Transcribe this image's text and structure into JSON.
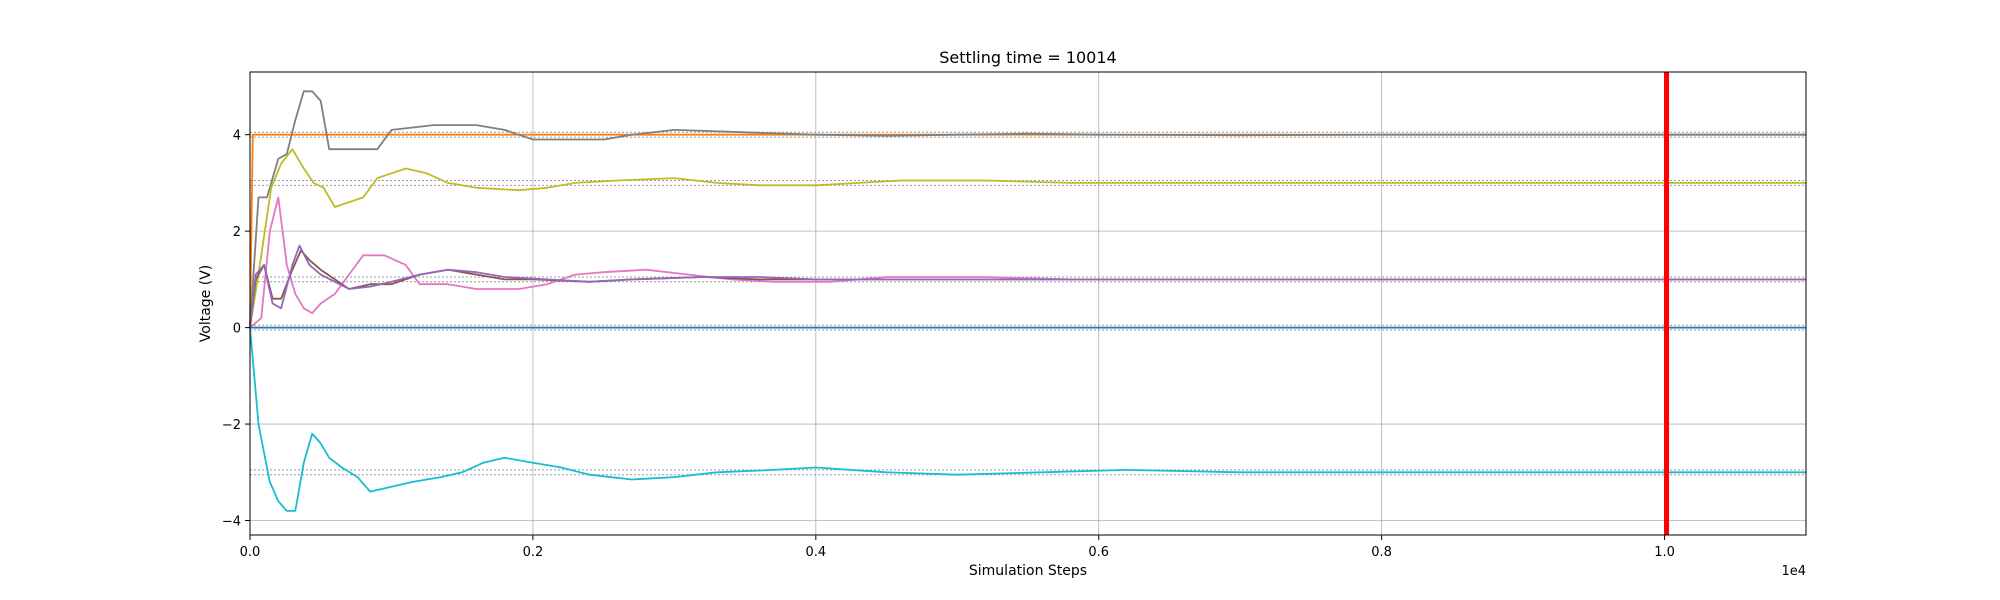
{
  "chart_data": {
    "type": "line",
    "title": "Settling time = 10014",
    "xlabel": "Simulation Steps",
    "ylabel": "Voltage (V)",
    "x_offset_label": "1e4",
    "xlim": [
      0,
      11000
    ],
    "ylim": [
      -4.3,
      5.3
    ],
    "x_ticks": [
      0,
      2000,
      4000,
      6000,
      8000,
      10000
    ],
    "x_tick_labels": [
      "0.0",
      "0.2",
      "0.4",
      "0.6",
      "0.8",
      "1.0"
    ],
    "y_ticks": [
      -4,
      -2,
      0,
      2,
      4
    ],
    "y_tick_labels": [
      "−4",
      "−2",
      "0",
      "2",
      "4"
    ],
    "grid": true,
    "settling_marker": {
      "x": 10014,
      "color": "#ff0000"
    },
    "tolerance_band": {
      "half_width": 0.05,
      "color": "#999999"
    },
    "series": [
      {
        "color": "#ff7f0e",
        "target": 4,
        "points": [
          [
            0,
            0
          ],
          [
            20,
            4
          ],
          [
            11000,
            4
          ]
        ]
      },
      {
        "color": "#7f7f7f",
        "target": 4,
        "points": [
          [
            0,
            0
          ],
          [
            60,
            2.7
          ],
          [
            120,
            2.7
          ],
          [
            200,
            3.5
          ],
          [
            260,
            3.6
          ],
          [
            320,
            4.3
          ],
          [
            380,
            4.9
          ],
          [
            440,
            4.9
          ],
          [
            500,
            4.7
          ],
          [
            560,
            3.7
          ],
          [
            900,
            3.7
          ],
          [
            1000,
            4.1
          ],
          [
            1300,
            4.2
          ],
          [
            1600,
            4.2
          ],
          [
            1800,
            4.1
          ],
          [
            1900,
            4.0
          ],
          [
            2000,
            3.9
          ],
          [
            2500,
            3.9
          ],
          [
            2700,
            4.0
          ],
          [
            3000,
            4.1
          ],
          [
            3500,
            4.05
          ],
          [
            4000,
            4.0
          ],
          [
            4500,
            3.98
          ],
          [
            5000,
            4.0
          ],
          [
            5500,
            4.02
          ],
          [
            6000,
            4.0
          ],
          [
            7000,
            3.99
          ],
          [
            8000,
            4.0
          ],
          [
            9000,
            4.0
          ],
          [
            11000,
            4.0
          ]
        ]
      },
      {
        "color": "#bcbd22",
        "target": 3,
        "points": [
          [
            0,
            0
          ],
          [
            80,
            1.5
          ],
          [
            150,
            2.9
          ],
          [
            220,
            3.4
          ],
          [
            300,
            3.7
          ],
          [
            380,
            3.3
          ],
          [
            450,
            3.0
          ],
          [
            520,
            2.9
          ],
          [
            600,
            2.5
          ],
          [
            700,
            2.6
          ],
          [
            800,
            2.7
          ],
          [
            900,
            3.1
          ],
          [
            1000,
            3.2
          ],
          [
            1100,
            3.3
          ],
          [
            1250,
            3.2
          ],
          [
            1400,
            3.0
          ],
          [
            1600,
            2.9
          ],
          [
            1900,
            2.85
          ],
          [
            2100,
            2.9
          ],
          [
            2300,
            3.0
          ],
          [
            2600,
            3.05
          ],
          [
            3000,
            3.1
          ],
          [
            3300,
            3.0
          ],
          [
            3600,
            2.95
          ],
          [
            4000,
            2.95
          ],
          [
            4600,
            3.05
          ],
          [
            5200,
            3.05
          ],
          [
            5800,
            3.0
          ],
          [
            6500,
            3.0
          ],
          [
            7500,
            3.0
          ],
          [
            11000,
            3.0
          ]
        ]
      },
      {
        "color": "#e377c2",
        "target": 1,
        "points": [
          [
            0,
            0
          ],
          [
            80,
            0.2
          ],
          [
            140,
            2.0
          ],
          [
            200,
            2.7
          ],
          [
            260,
            1.3
          ],
          [
            320,
            0.7
          ],
          [
            380,
            0.4
          ],
          [
            440,
            0.3
          ],
          [
            500,
            0.5
          ],
          [
            600,
            0.7
          ],
          [
            700,
            1.1
          ],
          [
            800,
            1.5
          ],
          [
            950,
            1.5
          ],
          [
            1100,
            1.3
          ],
          [
            1200,
            0.9
          ],
          [
            1400,
            0.9
          ],
          [
            1600,
            0.8
          ],
          [
            1900,
            0.8
          ],
          [
            2100,
            0.9
          ],
          [
            2300,
            1.1
          ],
          [
            2500,
            1.15
          ],
          [
            2800,
            1.2
          ],
          [
            3100,
            1.1
          ],
          [
            3400,
            1.0
          ],
          [
            3700,
            0.95
          ],
          [
            4100,
            0.95
          ],
          [
            4500,
            1.05
          ],
          [
            5200,
            1.05
          ],
          [
            5800,
            1.0
          ],
          [
            7000,
            1.0
          ],
          [
            11000,
            1.0
          ]
        ]
      },
      {
        "color": "#8c564b",
        "target": 1,
        "points": [
          [
            0,
            0
          ],
          [
            40,
            1.0
          ],
          [
            100,
            1.3
          ],
          [
            160,
            0.6
          ],
          [
            220,
            0.6
          ],
          [
            300,
            1.2
          ],
          [
            360,
            1.6
          ],
          [
            420,
            1.4
          ],
          [
            500,
            1.2
          ],
          [
            600,
            1.0
          ],
          [
            700,
            0.8
          ],
          [
            850,
            0.9
          ],
          [
            1000,
            0.9
          ],
          [
            1200,
            1.1
          ],
          [
            1400,
            1.2
          ],
          [
            1600,
            1.1
          ],
          [
            1800,
            1.0
          ],
          [
            2000,
            1.0
          ],
          [
            2400,
            0.95
          ],
          [
            2700,
            1.0
          ],
          [
            3200,
            1.05
          ],
          [
            3600,
            1.0
          ],
          [
            4000,
            1.0
          ],
          [
            4700,
            1.0
          ],
          [
            5500,
            1.0
          ],
          [
            11000,
            1.0
          ]
        ]
      },
      {
        "color": "#9467bd",
        "target": 1,
        "points": [
          [
            0,
            0
          ],
          [
            40,
            1.1
          ],
          [
            100,
            1.3
          ],
          [
            160,
            0.5
          ],
          [
            220,
            0.4
          ],
          [
            300,
            1.3
          ],
          [
            350,
            1.7
          ],
          [
            420,
            1.3
          ],
          [
            500,
            1.1
          ],
          [
            600,
            0.95
          ],
          [
            700,
            0.8
          ],
          [
            850,
            0.85
          ],
          [
            1000,
            0.95
          ],
          [
            1200,
            1.1
          ],
          [
            1400,
            1.2
          ],
          [
            1600,
            1.15
          ],
          [
            1800,
            1.05
          ],
          [
            2100,
            1.0
          ],
          [
            2400,
            0.95
          ],
          [
            2700,
            1.0
          ],
          [
            3200,
            1.05
          ],
          [
            3600,
            1.05
          ],
          [
            4000,
            1.0
          ],
          [
            4700,
            1.0
          ],
          [
            5500,
            1.0
          ],
          [
            11000,
            1.0
          ]
        ]
      },
      {
        "color": "#1f77b4",
        "target": 0,
        "points": [
          [
            0,
            0
          ],
          [
            11000,
            0
          ]
        ]
      },
      {
        "color": "#17becf",
        "target": -3,
        "points": [
          [
            0,
            0
          ],
          [
            60,
            -2.0
          ],
          [
            100,
            -2.6
          ],
          [
            140,
            -3.2
          ],
          [
            200,
            -3.6
          ],
          [
            260,
            -3.8
          ],
          [
            320,
            -3.8
          ],
          [
            380,
            -2.8
          ],
          [
            440,
            -2.2
          ],
          [
            500,
            -2.4
          ],
          [
            560,
            -2.7
          ],
          [
            650,
            -2.9
          ],
          [
            760,
            -3.1
          ],
          [
            850,
            -3.4
          ],
          [
            1000,
            -3.3
          ],
          [
            1150,
            -3.2
          ],
          [
            1350,
            -3.1
          ],
          [
            1500,
            -3.0
          ],
          [
            1650,
            -2.8
          ],
          [
            1800,
            -2.7
          ],
          [
            2000,
            -2.8
          ],
          [
            2200,
            -2.9
          ],
          [
            2400,
            -3.05
          ],
          [
            2700,
            -3.15
          ],
          [
            3000,
            -3.1
          ],
          [
            3300,
            -3.0
          ],
          [
            3700,
            -2.95
          ],
          [
            4000,
            -2.9
          ],
          [
            4500,
            -3.0
          ],
          [
            5000,
            -3.05
          ],
          [
            5600,
            -3.0
          ],
          [
            6200,
            -2.95
          ],
          [
            7000,
            -3.0
          ],
          [
            8000,
            -3.0
          ],
          [
            11000,
            -3.0
          ]
        ]
      }
    ]
  }
}
